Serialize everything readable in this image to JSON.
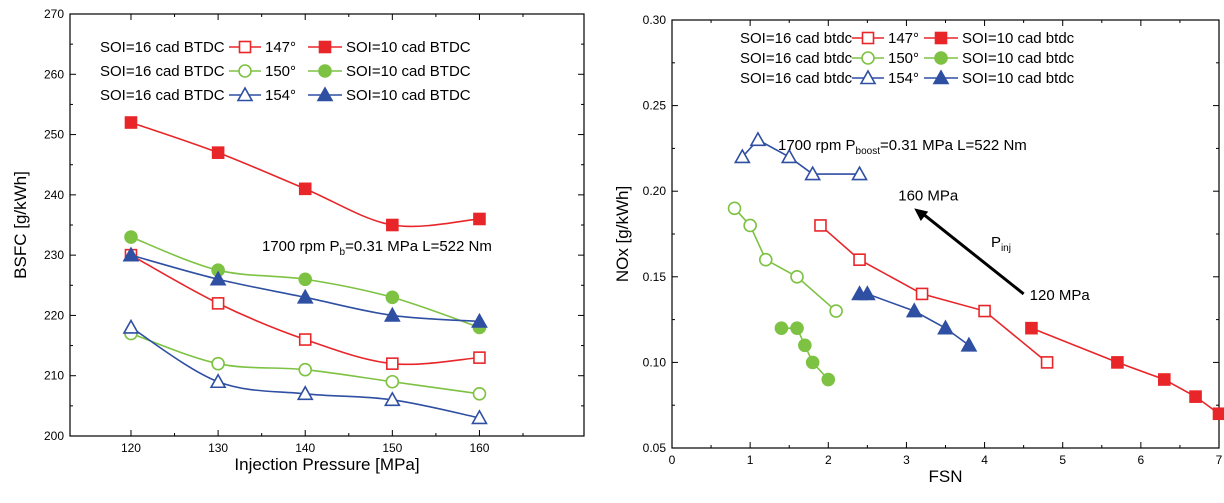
{
  "chart_data": [
    {
      "type": "line",
      "xlabel": "Injection Pressure [MPa]",
      "ylabel": "BSFC [g/kWh]",
      "xlim": [
        113,
        172
      ],
      "ylim": [
        200,
        270
      ],
      "xticks": [
        "120",
        "130",
        "140",
        "150",
        "160"
      ],
      "yticks": [
        "200",
        "210",
        "220",
        "230",
        "240",
        "250",
        "260",
        "270"
      ],
      "annotation": {
        "main": "1700 rpm  P",
        "sub": "b",
        "rest": "=0.31 MPa  L=522 Nm"
      },
      "legend": [
        {
          "left": "SOI=16 cad BTDC",
          "mid": "147°",
          "right": "SOI=10 cad BTDC"
        },
        {
          "left": "SOI=16 cad BTDC",
          "mid": "150°",
          "right": "SOI=10 cad BTDC"
        },
        {
          "left": "SOI=16 cad BTDC",
          "mid": "154°",
          "right": "SOI=10 cad BTDC"
        }
      ],
      "series": [
        {
          "color": "#e8262a",
          "marker": "square",
          "filled": false,
          "x": [
            120,
            130,
            140,
            150,
            160
          ],
          "y": [
            230,
            222,
            216,
            212,
            213
          ]
        },
        {
          "color": "#e8262a",
          "marker": "square",
          "filled": true,
          "x": [
            120,
            130,
            140,
            150,
            160
          ],
          "y": [
            252,
            247,
            241,
            235,
            236
          ]
        },
        {
          "color": "#7dc242",
          "marker": "circle",
          "filled": false,
          "x": [
            120,
            130,
            140,
            150,
            160
          ],
          "y": [
            217,
            212,
            211,
            209,
            207
          ]
        },
        {
          "color": "#7dc242",
          "marker": "circle",
          "filled": true,
          "x": [
            120,
            130,
            140,
            150,
            160
          ],
          "y": [
            233,
            227.5,
            226,
            223,
            218
          ]
        },
        {
          "color": "#2f4fa2",
          "marker": "triangle",
          "filled": false,
          "x": [
            120,
            130,
            140,
            150,
            160
          ],
          "y": [
            218,
            209,
            207,
            206,
            203
          ]
        },
        {
          "color": "#2f4fa2",
          "marker": "triangle",
          "filled": true,
          "x": [
            120,
            130,
            140,
            150,
            160
          ],
          "y": [
            230,
            226,
            223,
            220,
            219
          ]
        }
      ]
    },
    {
      "type": "line",
      "xlabel": "FSN",
      "ylabel": "NOx [g/kWh]",
      "xlim": [
        0,
        7
      ],
      "ylim": [
        0.05,
        0.3
      ],
      "xticks": [
        "0",
        "1",
        "2",
        "3",
        "4",
        "5",
        "6",
        "7"
      ],
      "yticks": [
        "0.05",
        "0.10",
        "0.15",
        "0.20",
        "0.25",
        "0.30"
      ],
      "annotation": {
        "main": "1700 rpm  P",
        "sub": "boost",
        "rest": "=0.31 MPa   L=522 Nm"
      },
      "arrow": {
        "from": [
          4.5,
          0.14
        ],
        "to": [
          3.1,
          0.19
        ],
        "start_label": "120 MPa",
        "end_label": "160 MPa",
        "mid_label": "P",
        "mid_sub": "inj"
      },
      "legend": [
        {
          "left": "SOI=16 cad btdc",
          "mid": "147°",
          "right": "SOI=10 cad btdc"
        },
        {
          "left": "SOI=16 cad btdc",
          "mid": "150°",
          "right": "SOI=10 cad btdc"
        },
        {
          "left": "SOI=16 cad btdc",
          "mid": "154°",
          "right": "SOI=10 cad btdc"
        }
      ],
      "series": [
        {
          "color": "#e8262a",
          "marker": "square",
          "filled": false,
          "x": [
            1.9,
            2.4,
            3.2,
            4.0,
            4.8
          ],
          "y": [
            0.18,
            0.16,
            0.14,
            0.13,
            0.1
          ]
        },
        {
          "color": "#e8262a",
          "marker": "square",
          "filled": true,
          "x": [
            4.6,
            5.7,
            6.3,
            6.7,
            7.0
          ],
          "y": [
            0.12,
            0.1,
            0.09,
            0.08,
            0.07
          ]
        },
        {
          "color": "#7dc242",
          "marker": "circle",
          "filled": false,
          "x": [
            0.8,
            1.0,
            1.2,
            1.6,
            2.1
          ],
          "y": [
            0.19,
            0.18,
            0.16,
            0.15,
            0.13
          ]
        },
        {
          "color": "#7dc242",
          "marker": "circle",
          "filled": true,
          "x": [
            1.4,
            1.6,
            1.7,
            1.8,
            2.0
          ],
          "y": [
            0.12,
            0.12,
            0.11,
            0.1,
            0.09
          ]
        },
        {
          "color": "#2f4fa2",
          "marker": "triangle",
          "filled": false,
          "x": [
            0.9,
            1.1,
            1.5,
            1.8,
            2.4
          ],
          "y": [
            0.22,
            0.23,
            0.22,
            0.21,
            0.21
          ]
        },
        {
          "color": "#2f4fa2",
          "marker": "triangle",
          "filled": true,
          "x": [
            2.4,
            2.5,
            3.1,
            3.5,
            3.8
          ],
          "y": [
            0.14,
            0.14,
            0.13,
            0.12,
            0.11
          ]
        }
      ]
    }
  ]
}
